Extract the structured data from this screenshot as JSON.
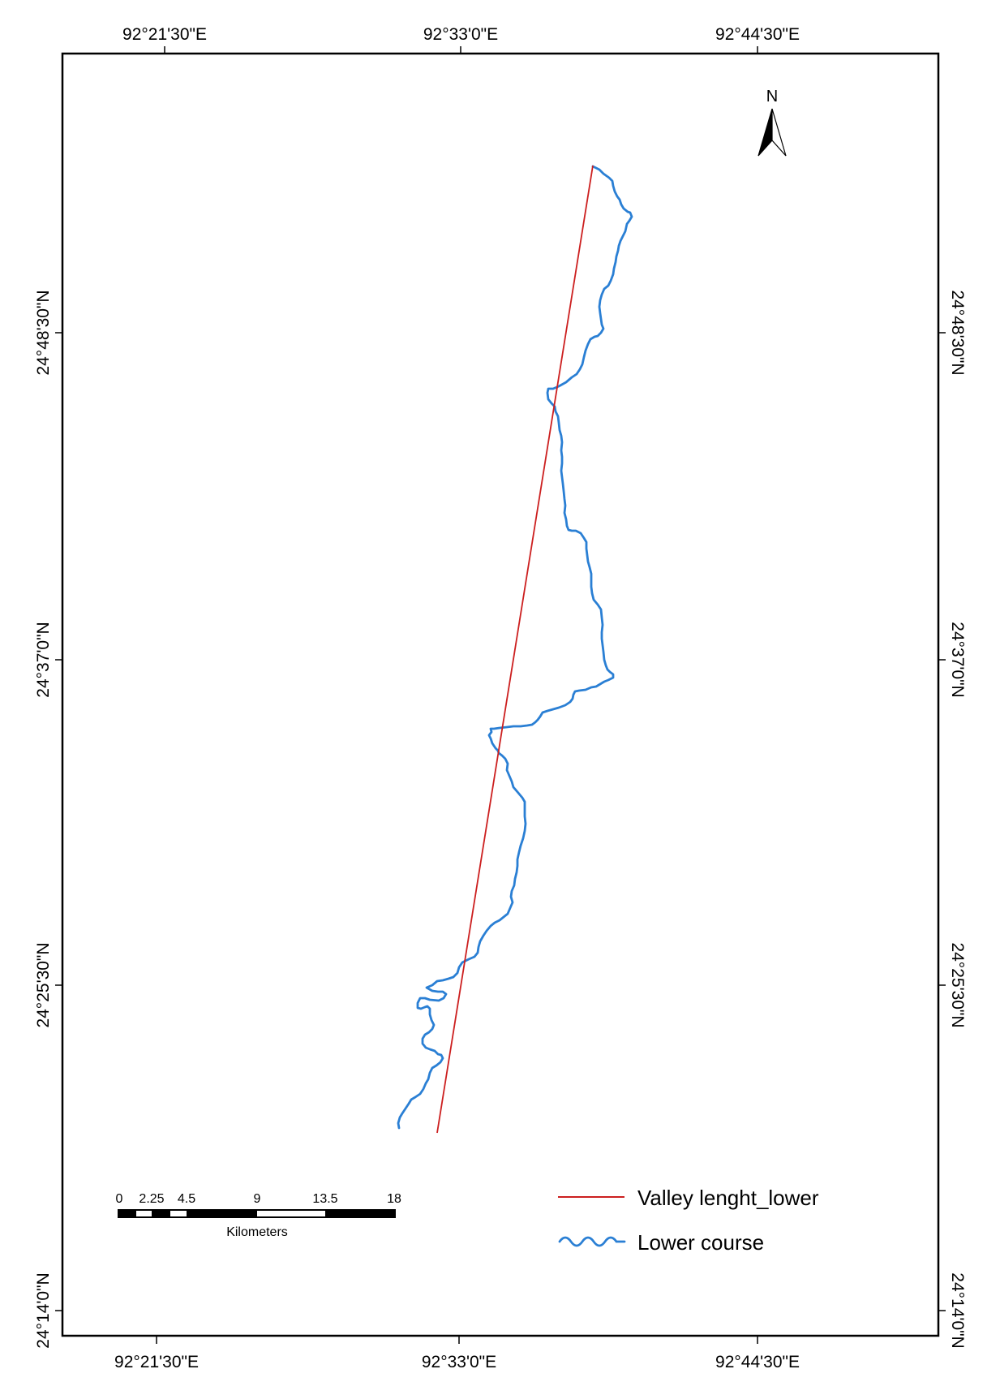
{
  "map": {
    "top_longitude_labels": [
      "92°21'30\"E",
      "92°33'0\"E",
      "92°44'30\"E"
    ],
    "bottom_longitude_labels": [
      "92°21'30\"E",
      "92°33'0\"E",
      "92°44'30\"E"
    ],
    "left_latitude_labels": [
      "24°48'30\"N",
      "24°37'0\"N",
      "24°25'30\"N",
      "24°14'0\"N"
    ],
    "right_latitude_labels": [
      "24°48'30\"N",
      "24°37'0\"N",
      "24°25'30\"N",
      "24°14'0\"N"
    ],
    "north_arrow": {
      "label": "N",
      "icon": "north-arrow-icon"
    },
    "scale_bar": {
      "tick_labels": [
        "0",
        "2.25",
        "4.5",
        "9",
        "13.5",
        "18"
      ],
      "unit": "Kilometers"
    },
    "legend": [
      {
        "label": "Valley lenght_lower",
        "symbol": "straight-line",
        "color": "#cc1f1f"
      },
      {
        "label": "Lower course",
        "symbol": "wavy-line",
        "color": "#2a7fd4"
      }
    ],
    "colors": {
      "valley_line": "#cc1f1f",
      "river": "#2a7fd4",
      "frame": "#000000"
    }
  }
}
